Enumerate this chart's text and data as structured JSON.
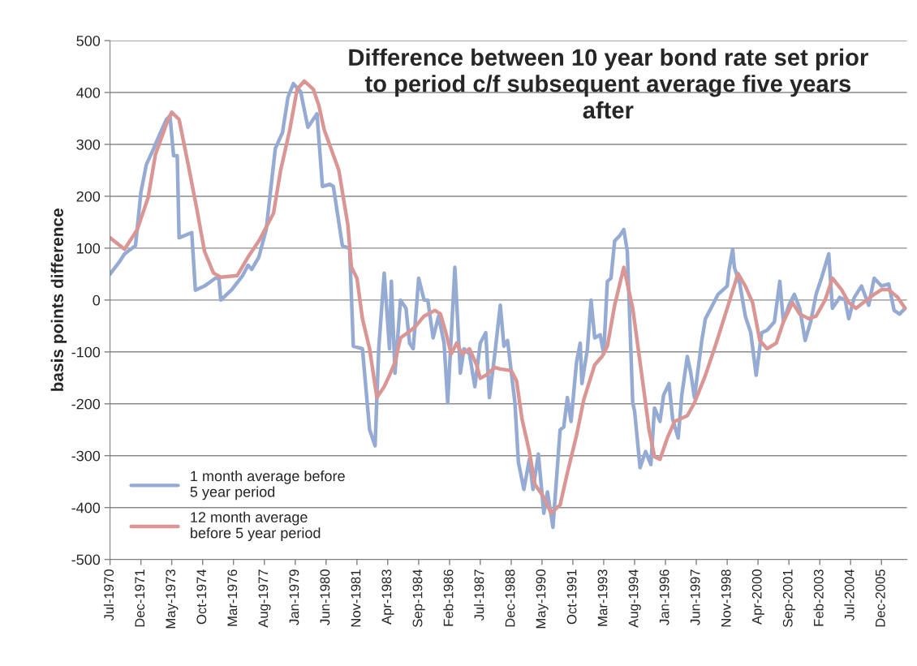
{
  "chart_data": {
    "type": "line",
    "title": "Difference between 10 year bond rate set prior\nto period c/f subsequent average five years\nafter",
    "ylabel": "basis points difference",
    "xlim": [
      "1970-07",
      "2007-02"
    ],
    "xticks": [
      {
        "value": "1970-07",
        "label": "Jul-1970"
      },
      {
        "value": "1971-12",
        "label": "Dec-1971"
      },
      {
        "value": "1973-05",
        "label": "May-1973"
      },
      {
        "value": "1974-10",
        "label": "Oct-1974"
      },
      {
        "value": "1976-03",
        "label": "Mar-1976"
      },
      {
        "value": "1977-08",
        "label": "Aug-1977"
      },
      {
        "value": "1979-01",
        "label": "Jan-1979"
      },
      {
        "value": "1980-06",
        "label": "Jun-1980"
      },
      {
        "value": "1981-11",
        "label": "Nov-1981"
      },
      {
        "value": "1983-04",
        "label": "Apr-1983"
      },
      {
        "value": "1984-09",
        "label": "Sep-1984"
      },
      {
        "value": "1986-02",
        "label": "Feb-1986"
      },
      {
        "value": "1987-07",
        "label": "Jul-1987"
      },
      {
        "value": "1988-12",
        "label": "Dec-1988"
      },
      {
        "value": "1990-05",
        "label": "May-1990"
      },
      {
        "value": "1991-10",
        "label": "Oct-1991"
      },
      {
        "value": "1993-03",
        "label": "Mar-1993"
      },
      {
        "value": "1994-08",
        "label": "Aug-1994"
      },
      {
        "value": "1996-01",
        "label": "Jan-1996"
      },
      {
        "value": "1997-06",
        "label": "Jun-1997"
      },
      {
        "value": "1998-11",
        "label": "Nov-1998"
      },
      {
        "value": "2000-04",
        "label": "Apr-2000"
      },
      {
        "value": "2001-09",
        "label": "Sep-2001"
      },
      {
        "value": "2003-02",
        "label": "Feb-2003"
      },
      {
        "value": "2004-07",
        "label": "Jul-2004"
      },
      {
        "value": "2005-12",
        "label": "Dec-2005"
      }
    ],
    "ylim": [
      -500,
      500
    ],
    "yticks": [
      -500,
      -400,
      -300,
      -200,
      -100,
      0,
      100,
      200,
      300,
      400,
      500
    ],
    "grid": "y",
    "legend": "bottom left",
    "series": [
      {
        "name": "1 month average before\n5 year period",
        "color": "#95abd3",
        "x": [
          "1970-07",
          "1970-12",
          "1971-03",
          "1971-09",
          "1971-12",
          "1972-03",
          "1972-07",
          "1972-10",
          "1973-02",
          "1973-04",
          "1973-05",
          "1973-06",
          "1973-08",
          "1973-09",
          "1974-04",
          "1974-06",
          "1974-11",
          "1975-05",
          "1975-07",
          "1975-08",
          "1976-02",
          "1976-08",
          "1976-11",
          "1977-01",
          "1977-05",
          "1977-09",
          "1978-02",
          "1978-06",
          "1978-09",
          "1978-12",
          "1979-04",
          "1979-08",
          "1980-01",
          "1980-04",
          "1980-08",
          "1980-10",
          "1981-03",
          "1981-07",
          "1981-09",
          "1982-02",
          "1982-06",
          "1982-09",
          "1982-11",
          "1983-02",
          "1983-05",
          "1983-06",
          "1983-08",
          "1983-11",
          "1984-02",
          "1984-04",
          "1984-06",
          "1984-09",
          "1984-12",
          "1985-02",
          "1985-05",
          "1985-08",
          "1985-11",
          "1986-01",
          "1986-05",
          "1986-08",
          "1986-10",
          "1987-01",
          "1987-04",
          "1987-07",
          "1987-10",
          "1987-12",
          "1988-03",
          "1988-06",
          "1988-08",
          "1988-10",
          "1989-02",
          "1989-04",
          "1989-07",
          "1989-10",
          "1989-12",
          "1990-03",
          "1990-06",
          "1990-08",
          "1990-11",
          "1991-03",
          "1991-05",
          "1991-07",
          "1991-09",
          "1991-12",
          "1992-02",
          "1992-03",
          "1992-06",
          "1992-08",
          "1992-10",
          "1993-01",
          "1993-03",
          "1993-05",
          "1993-07",
          "1993-09",
          "1993-12",
          "1994-02",
          "1994-04",
          "1994-07",
          "1994-08",
          "1994-11",
          "1995-02",
          "1995-05",
          "1995-07",
          "1995-10",
          "1995-12",
          "1996-03",
          "1996-05",
          "1996-08",
          "1996-10",
          "1997-01",
          "1997-03",
          "1997-05",
          "1997-09",
          "1997-11",
          "1998-02",
          "1998-06",
          "1998-11",
          "1998-12",
          "1999-02",
          "1999-03",
          "1999-06",
          "1999-09",
          "1999-12",
          "2000-03",
          "2000-06",
          "2000-09",
          "2001-01",
          "2001-04",
          "2001-06",
          "2001-09",
          "2001-12",
          "2002-03",
          "2002-06",
          "2002-09",
          "2002-12",
          "2003-03",
          "2003-07",
          "2003-09",
          "2004-01",
          "2004-04",
          "2004-06",
          "2004-09",
          "2005-01",
          "2005-05",
          "2005-08",
          "2005-12",
          "2006-04",
          "2006-07",
          "2006-10",
          "2007-01"
        ],
        "values": [
          50,
          73,
          89,
          105,
          208,
          261,
          292,
          317,
          348,
          355,
          317,
          278,
          278,
          120,
          130,
          19,
          27,
          42,
          42,
          0,
          20,
          47,
          67,
          59,
          83,
          136,
          292,
          323,
          391,
          417,
          402,
          333,
          359,
          219,
          223,
          219,
          105,
          99,
          -89,
          -94,
          -250,
          -281,
          -94,
          52,
          -94,
          36,
          -141,
          0,
          -16,
          -83,
          -94,
          42,
          0,
          0,
          -73,
          -31,
          -83,
          -198,
          63,
          -141,
          -94,
          -104,
          -167,
          -83,
          -63,
          -188,
          -104,
          -10,
          -89,
          -78,
          -198,
          -313,
          -365,
          -307,
          -365,
          -297,
          -411,
          -370,
          -438,
          -250,
          -245,
          -188,
          -234,
          -120,
          -83,
          -161,
          -94,
          0,
          -73,
          -67,
          -104,
          36,
          42,
          114,
          125,
          136,
          94,
          -198,
          -214,
          -323,
          -292,
          -317,
          -208,
          -234,
          -183,
          -161,
          -230,
          -266,
          -183,
          -109,
          -141,
          -188,
          -78,
          -36,
          -16,
          11,
          27,
          58,
          98,
          63,
          31,
          -31,
          -63,
          -145,
          -63,
          -58,
          -42,
          36,
          -42,
          -10,
          11,
          -16,
          -78,
          -42,
          11,
          42,
          89,
          -16,
          5,
          0,
          -36,
          5,
          27,
          -10,
          42,
          27,
          31,
          -20,
          -27,
          -16
        ]
      },
      {
        "name": "12 month average\nbefore 5 year period",
        "color": "#d99694",
        "x": [
          "1970-07",
          "1971-03",
          "1971-10",
          "1972-04",
          "1972-08",
          "1973-03",
          "1973-05",
          "1973-09",
          "1974-02",
          "1974-07",
          "1974-11",
          "1975-04",
          "1975-08",
          "1976-05",
          "1976-11",
          "1977-05",
          "1978-01",
          "1978-05",
          "1978-10",
          "1979-02",
          "1979-06",
          "1979-11",
          "1980-02",
          "1980-05",
          "1981-01",
          "1981-06",
          "1981-08",
          "1981-11",
          "1982-02",
          "1982-06",
          "1982-10",
          "1983-02",
          "1983-05",
          "1983-08",
          "1983-11",
          "1984-03",
          "1984-07",
          "1984-12",
          "1985-06",
          "1985-09",
          "1985-12",
          "1986-03",
          "1986-06",
          "1986-09",
          "1987-01",
          "1987-05",
          "1987-07",
          "1987-10",
          "1988-03",
          "1988-06",
          "1988-12",
          "1989-03",
          "1989-06",
          "1989-10",
          "1990-01",
          "1990-06",
          "1990-10",
          "1991-03",
          "1991-07",
          "1991-12",
          "1992-04",
          "1992-10",
          "1993-02",
          "1993-05",
          "1993-09",
          "1994-02",
          "1994-07",
          "1994-10",
          "1995-01",
          "1995-04",
          "1995-07",
          "1995-10",
          "1996-02",
          "1996-06",
          "1997-01",
          "1997-05",
          "1997-11",
          "1998-05",
          "1998-11",
          "1999-05",
          "1999-09",
          "2000-01",
          "2000-05",
          "2000-09",
          "2001-02",
          "2001-06",
          "2001-11",
          "2002-03",
          "2002-08",
          "2002-12",
          "2003-05",
          "2003-09",
          "2004-02",
          "2004-06",
          "2004-10",
          "2005-02",
          "2005-08",
          "2005-12",
          "2006-04",
          "2006-09",
          "2007-01"
        ],
        "values": [
          120,
          98,
          136,
          198,
          281,
          348,
          362,
          348,
          261,
          172,
          94,
          52,
          44,
          47,
          83,
          114,
          167,
          250,
          328,
          406,
          422,
          406,
          375,
          328,
          250,
          145,
          63,
          42,
          -36,
          -94,
          -188,
          -167,
          -145,
          -120,
          -73,
          -63,
          -52,
          -31,
          -20,
          -27,
          -63,
          -104,
          -83,
          -104,
          -94,
          -125,
          -151,
          -145,
          -130,
          -133,
          -136,
          -156,
          -230,
          -292,
          -355,
          -380,
          -411,
          -395,
          -333,
          -261,
          -192,
          -125,
          -109,
          -89,
          -10,
          63,
          -16,
          -94,
          -172,
          -250,
          -302,
          -307,
          -266,
          -234,
          -223,
          -198,
          -145,
          -83,
          -16,
          51,
          27,
          -5,
          -78,
          -94,
          -83,
          -42,
          -5,
          -27,
          -36,
          -31,
          0,
          42,
          20,
          -5,
          -16,
          -5,
          11,
          20,
          20,
          5,
          -16
        ]
      }
    ]
  }
}
